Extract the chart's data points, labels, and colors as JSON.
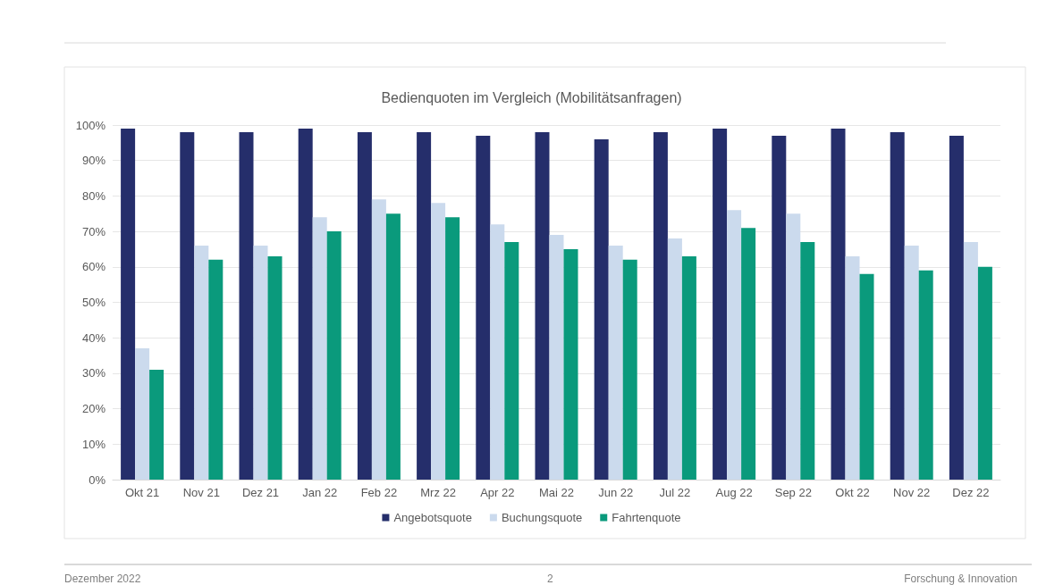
{
  "chart_data": {
    "type": "bar",
    "title": "Bedienquoten im Vergleich (Mobilitätsanfragen)",
    "categories": [
      "Okt 21",
      "Nov 21",
      "Dez 21",
      "Jan 22",
      "Feb 22",
      "Mrz 22",
      "Apr 22",
      "Mai 22",
      "Jun 22",
      "Jul 22",
      "Aug 22",
      "Sep 22",
      "Okt 22",
      "Nov 22",
      "Dez 22"
    ],
    "series": [
      {
        "name": "Angebotsquote",
        "color": "#252e6b",
        "values": [
          99,
          98,
          98,
          99,
          98,
          98,
          97,
          98,
          96,
          98,
          99,
          97,
          99,
          98,
          97
        ]
      },
      {
        "name": "Buchungsquote",
        "color": "#cbdaed",
        "values": [
          37,
          66,
          66,
          74,
          79,
          78,
          72,
          69,
          66,
          68,
          76,
          75,
          63,
          66,
          67
        ]
      },
      {
        "name": "Fahrtenquote",
        "color": "#0a9a7c",
        "values": [
          31,
          62,
          63,
          70,
          75,
          74,
          67,
          65,
          62,
          63,
          71,
          67,
          58,
          59,
          60
        ]
      }
    ],
    "ylim": [
      0,
      100
    ],
    "yticks": [
      {
        "value": 0,
        "label": "0%"
      },
      {
        "value": 10,
        "label": "10%"
      },
      {
        "value": 20,
        "label": "20%"
      },
      {
        "value": 30,
        "label": "30%"
      },
      {
        "value": 40,
        "label": "40%"
      },
      {
        "value": 50,
        "label": "50%"
      },
      {
        "value": 60,
        "label": "60%"
      },
      {
        "value": 70,
        "label": "70%"
      },
      {
        "value": 80,
        "label": "80%"
      },
      {
        "value": 90,
        "label": "90%"
      },
      {
        "value": 100,
        "label": "100%"
      }
    ],
    "grid": "y",
    "legend": "bottom",
    "annotations": [
      "Dezember 2022",
      "2",
      "Forschung & Innovation"
    ]
  }
}
